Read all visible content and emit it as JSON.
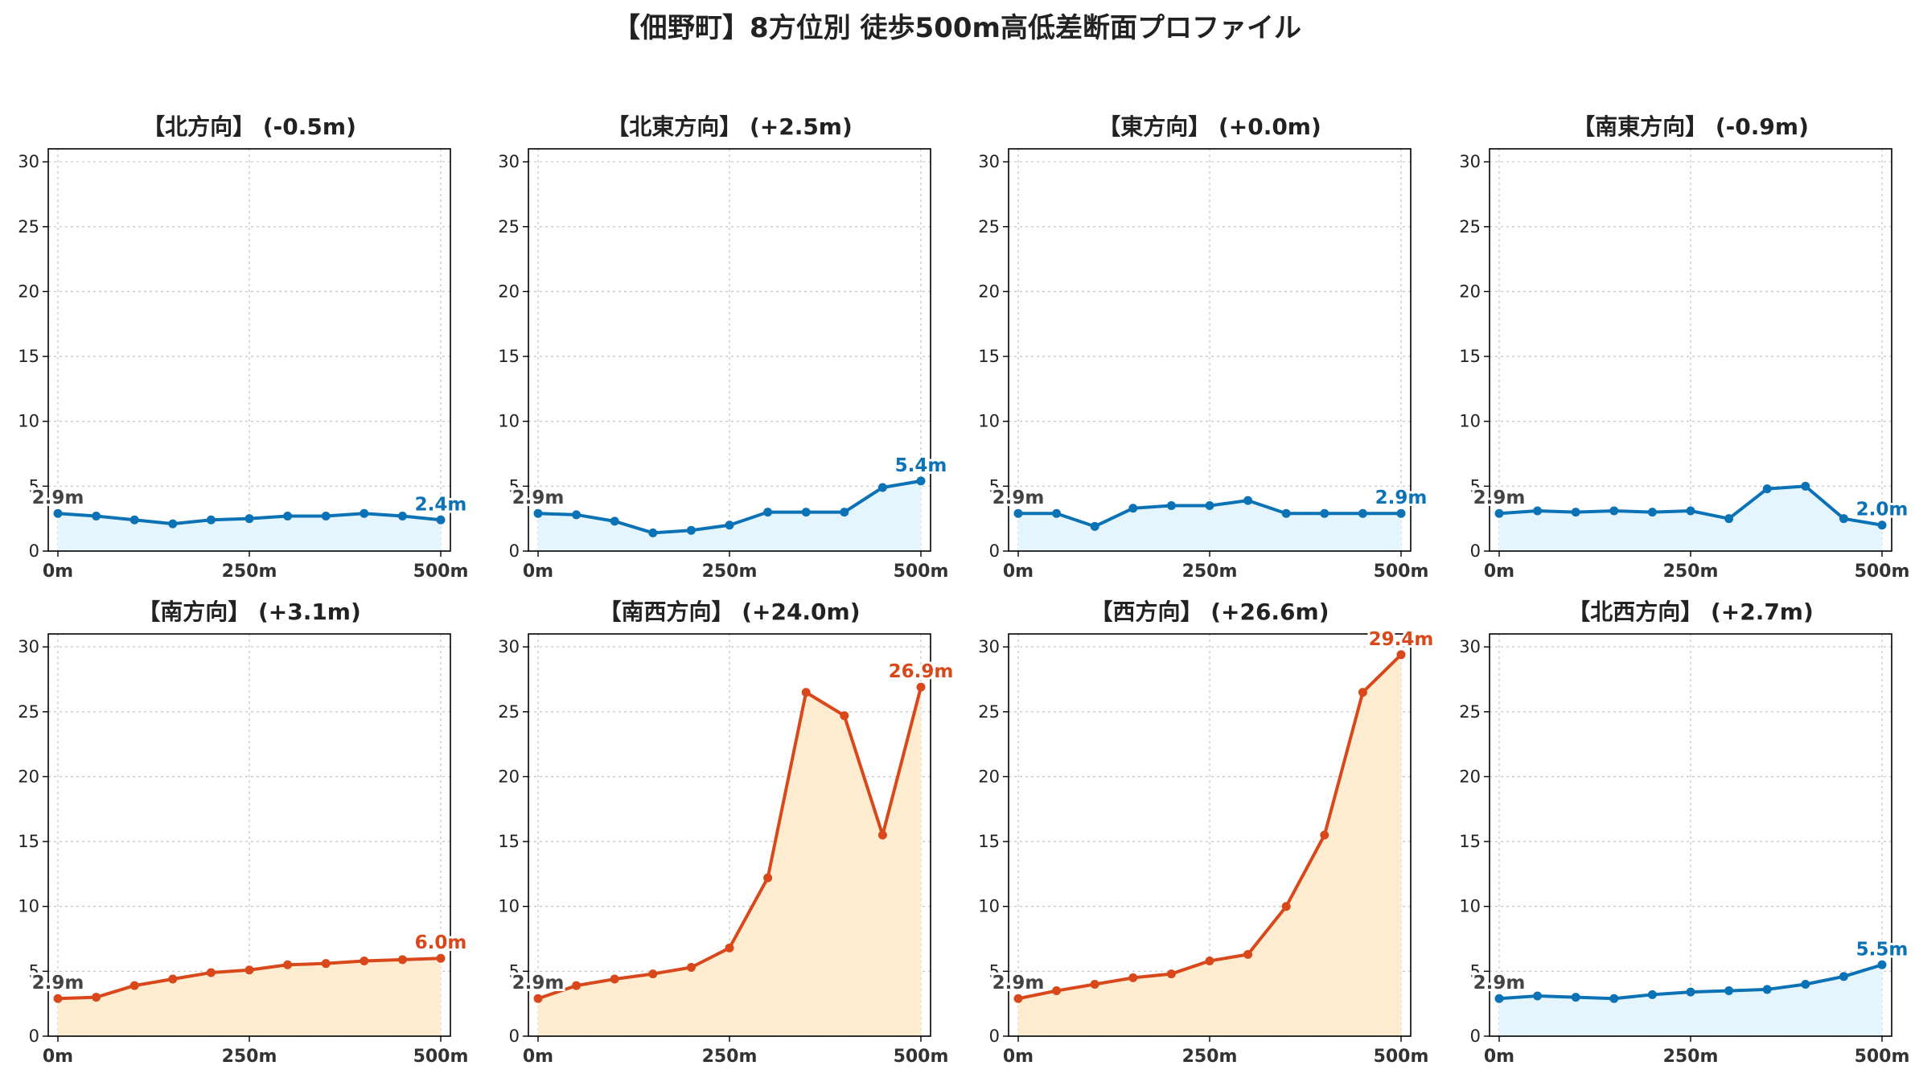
{
  "title": "【佃野町】8方位別 徒歩500m高低差断面プロファイル",
  "colors": {
    "down": "#0b72b5",
    "down_fill": "#e5f5fd",
    "up": "#d9481b",
    "up_fill": "#feecd1"
  },
  "chart_data": [
    {
      "type": "area",
      "title": "【北方向】 (-0.5m)",
      "trend": "down",
      "ylim": [
        0,
        31
      ],
      "yticks": [
        0,
        5,
        10,
        15,
        20,
        25,
        30
      ],
      "xlim": [
        0,
        500
      ],
      "xticks": [
        "0m",
        "250m",
        "500m"
      ],
      "xtick_values": [
        0,
        250,
        500
      ],
      "x": [
        0,
        50,
        100,
        150,
        200,
        250,
        300,
        350,
        400,
        450,
        500
      ],
      "values": [
        2.9,
        2.7,
        2.4,
        2.1,
        2.4,
        2.5,
        2.7,
        2.7,
        2.9,
        2.7,
        2.4
      ],
      "start_label": "2.9m",
      "end_label": "2.4m",
      "grid": true
    },
    {
      "type": "area",
      "title": "【北東方向】 (+2.5m)",
      "trend": "down",
      "ylim": [
        0,
        31
      ],
      "yticks": [
        0,
        5,
        10,
        15,
        20,
        25,
        30
      ],
      "xlim": [
        0,
        500
      ],
      "xticks": [
        "0m",
        "250m",
        "500m"
      ],
      "xtick_values": [
        0,
        250,
        500
      ],
      "x": [
        0,
        50,
        100,
        150,
        200,
        250,
        300,
        350,
        400,
        450,
        500
      ],
      "values": [
        2.9,
        2.8,
        2.3,
        1.4,
        1.6,
        2.0,
        3.0,
        3.0,
        3.0,
        4.9,
        5.4
      ],
      "start_label": "2.9m",
      "end_label": "5.4m",
      "grid": true
    },
    {
      "type": "area",
      "title": "【東方向】 (+0.0m)",
      "trend": "down",
      "ylim": [
        0,
        31
      ],
      "yticks": [
        0,
        5,
        10,
        15,
        20,
        25,
        30
      ],
      "xlim": [
        0,
        500
      ],
      "xticks": [
        "0m",
        "250m",
        "500m"
      ],
      "xtick_values": [
        0,
        250,
        500
      ],
      "x": [
        0,
        50,
        100,
        150,
        200,
        250,
        300,
        350,
        400,
        450,
        500
      ],
      "values": [
        2.9,
        2.9,
        1.9,
        3.3,
        3.5,
        3.5,
        3.9,
        2.9,
        2.9,
        2.9,
        2.9
      ],
      "start_label": "2.9m",
      "end_label": "2.9m",
      "grid": true
    },
    {
      "type": "area",
      "title": "【南東方向】 (-0.9m)",
      "trend": "down",
      "ylim": [
        0,
        31
      ],
      "yticks": [
        0,
        5,
        10,
        15,
        20,
        25,
        30
      ],
      "xlim": [
        0,
        500
      ],
      "xticks": [
        "0m",
        "250m",
        "500m"
      ],
      "xtick_values": [
        0,
        250,
        500
      ],
      "x": [
        0,
        50,
        100,
        150,
        200,
        250,
        300,
        350,
        400,
        450,
        500
      ],
      "values": [
        2.9,
        3.1,
        3.0,
        3.1,
        3.0,
        3.1,
        2.5,
        4.8,
        5.0,
        2.5,
        2.0
      ],
      "start_label": "2.9m",
      "end_label": "2.0m",
      "grid": true
    },
    {
      "type": "area",
      "title": "【南方向】 (+3.1m)",
      "trend": "up",
      "ylim": [
        0,
        31
      ],
      "yticks": [
        0,
        5,
        10,
        15,
        20,
        25,
        30
      ],
      "xlim": [
        0,
        500
      ],
      "xticks": [
        "0m",
        "250m",
        "500m"
      ],
      "xtick_values": [
        0,
        250,
        500
      ],
      "x": [
        0,
        50,
        100,
        150,
        200,
        250,
        300,
        350,
        400,
        450,
        500
      ],
      "values": [
        2.9,
        3.0,
        3.9,
        4.4,
        4.9,
        5.1,
        5.5,
        5.6,
        5.8,
        5.9,
        6.0
      ],
      "start_label": "2.9m",
      "end_label": "6.0m",
      "grid": true
    },
    {
      "type": "area",
      "title": "【南西方向】 (+24.0m)",
      "trend": "up",
      "ylim": [
        0,
        31
      ],
      "yticks": [
        0,
        5,
        10,
        15,
        20,
        25,
        30
      ],
      "xlim": [
        0,
        500
      ],
      "xticks": [
        "0m",
        "250m",
        "500m"
      ],
      "xtick_values": [
        0,
        250,
        500
      ],
      "x": [
        0,
        50,
        100,
        150,
        200,
        250,
        300,
        350,
        400,
        450,
        500
      ],
      "values": [
        2.9,
        3.9,
        4.4,
        4.8,
        5.3,
        6.8,
        12.2,
        26.5,
        24.7,
        15.5,
        26.9
      ],
      "start_label": "2.9m",
      "end_label": "26.9m",
      "grid": true
    },
    {
      "type": "area",
      "title": "【西方向】 (+26.6m)",
      "trend": "up",
      "ylim": [
        0,
        31
      ],
      "yticks": [
        0,
        5,
        10,
        15,
        20,
        25,
        30
      ],
      "xlim": [
        0,
        500
      ],
      "xticks": [
        "0m",
        "250m",
        "500m"
      ],
      "xtick_values": [
        0,
        250,
        500
      ],
      "x": [
        0,
        50,
        100,
        150,
        200,
        250,
        300,
        350,
        400,
        450,
        500
      ],
      "values": [
        2.9,
        3.5,
        4.0,
        4.5,
        4.8,
        5.8,
        6.3,
        10.0,
        15.5,
        26.5,
        29.4
      ],
      "start_label": "2.9m",
      "end_label": "29.4m",
      "grid": true
    },
    {
      "type": "area",
      "title": "【北西方向】 (+2.7m)",
      "trend": "down",
      "ylim": [
        0,
        31
      ],
      "yticks": [
        0,
        5,
        10,
        15,
        20,
        25,
        30
      ],
      "xlim": [
        0,
        500
      ],
      "xticks": [
        "0m",
        "250m",
        "500m"
      ],
      "xtick_values": [
        0,
        250,
        500
      ],
      "x": [
        0,
        50,
        100,
        150,
        200,
        250,
        300,
        350,
        400,
        450,
        500
      ],
      "values": [
        2.9,
        3.1,
        3.0,
        2.9,
        3.2,
        3.4,
        3.5,
        3.6,
        4.0,
        4.6,
        5.5
      ],
      "start_label": "2.9m",
      "end_label": "5.5m",
      "grid": true
    }
  ]
}
